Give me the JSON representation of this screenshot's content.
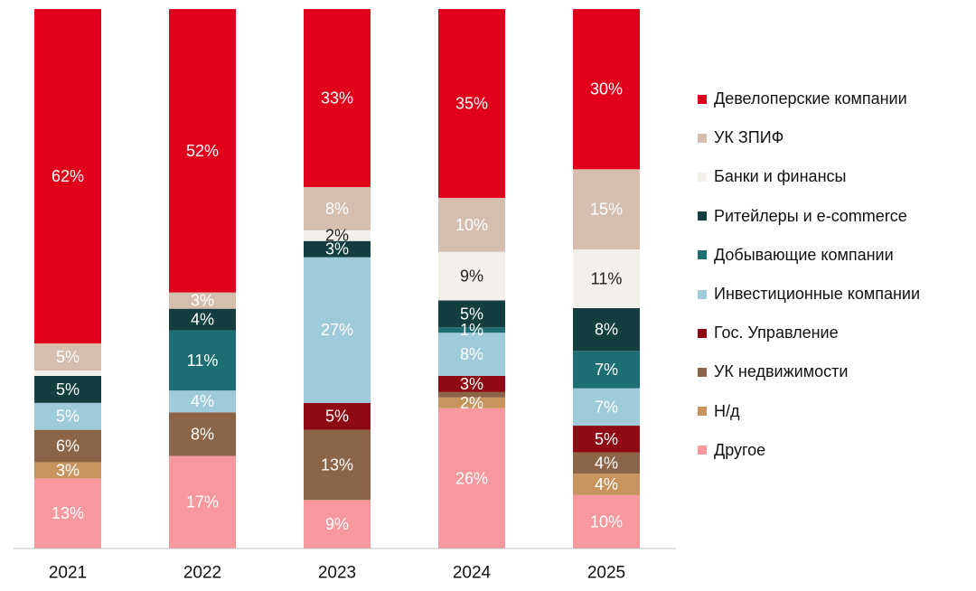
{
  "chart_data": {
    "type": "bar",
    "stacked": true,
    "categories": [
      "2021",
      "2022",
      "2023",
      "2024",
      "2025"
    ],
    "series": [
      {
        "name": "Другое",
        "color": "#F7989E",
        "text_color": "#ffffff",
        "values": [
          13,
          17,
          9,
          26,
          10
        ],
        "labels": [
          "13%",
          "17%",
          "9%",
          "26%",
          "10%"
        ]
      },
      {
        "name": "Н/д",
        "color": "#C8945E",
        "text_color": "#ffffff",
        "values": [
          3,
          0,
          0,
          2,
          4
        ],
        "labels": [
          "3%",
          "",
          "",
          "2%",
          "4%"
        ]
      },
      {
        "name": "УК недвижимости",
        "color": "#8C6548",
        "text_color": "#ffffff",
        "values": [
          6,
          8,
          13,
          1,
          4
        ],
        "labels": [
          "6%",
          "8%",
          "13%",
          "",
          "4%"
        ]
      },
      {
        "name": "Гос. Управление",
        "color": "#8E0A14",
        "text_color": "#ffffff",
        "values": [
          0,
          0,
          5,
          3,
          5
        ],
        "labels": [
          "",
          "",
          "5%",
          "3%",
          "5%"
        ]
      },
      {
        "name": "Инвестиционные компании",
        "color": "#9ECBDA",
        "text_color": "#ffffff",
        "values": [
          5,
          4,
          27,
          8,
          7
        ],
        "labels": [
          "5%",
          "4%",
          "27%",
          "8%",
          "7%"
        ]
      },
      {
        "name": "Добывающие компании",
        "color": "#1C6E73",
        "text_color": "#ffffff",
        "values": [
          0,
          11,
          0,
          1,
          7
        ],
        "labels": [
          "",
          "11%",
          "",
          "1%",
          "7%"
        ]
      },
      {
        "name": "Ритейлеры и e-commerce",
        "color": "#123E3F",
        "text_color": "#ffffff",
        "values": [
          5,
          4,
          3,
          5,
          8
        ],
        "labels": [
          "5%",
          "4%",
          "3%",
          "5%",
          "8%"
        ]
      },
      {
        "name": "Банки и финансы",
        "color": "#F3EFEA",
        "text_color": "#222222",
        "values": [
          1,
          0,
          2,
          9,
          11
        ],
        "labels": [
          "",
          "",
          "2%",
          "9%",
          "11%"
        ]
      },
      {
        "name": "УК ЗПИФ",
        "color": "#D6BEAE",
        "text_color": "#ffffff",
        "values": [
          5,
          3,
          8,
          10,
          15
        ],
        "labels": [
          "5%",
          "3%",
          "8%",
          "10%",
          "15%"
        ]
      },
      {
        "name": "Девелоперские компании",
        "color": "#E0001B",
        "text_color": "#ffffff",
        "values": [
          62,
          52,
          33,
          35,
          30
        ],
        "labels": [
          "62%",
          "52%",
          "33%",
          "35%",
          "30%"
        ]
      }
    ],
    "legend_order": [
      9,
      8,
      7,
      6,
      5,
      4,
      3,
      2,
      1,
      0
    ],
    "legend_position": "right",
    "ylim": [
      0,
      100
    ],
    "grid": false
  }
}
